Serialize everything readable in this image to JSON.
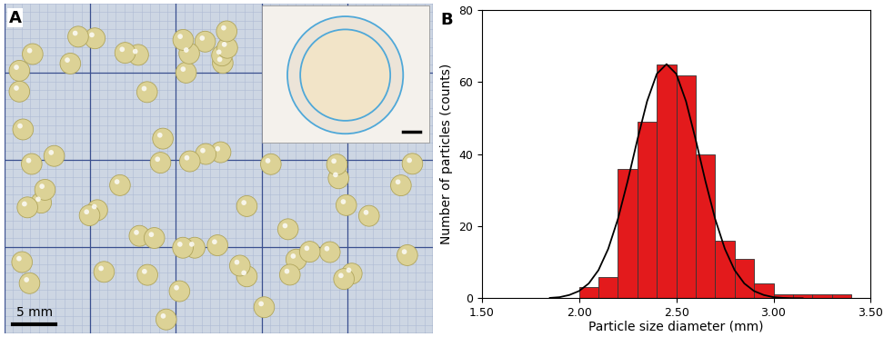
{
  "panel_labels": [
    "A",
    "B"
  ],
  "image_panel": {
    "scale_bar": "5 mm"
  },
  "chart_data": {
    "type": "histogram",
    "x_label": "Particle size diameter (mm)",
    "y_label": "Number of particles (counts)",
    "bins": [
      2.0,
      2.1,
      2.2,
      2.3,
      2.4,
      2.5,
      2.6,
      2.7,
      2.8,
      2.9,
      3.0,
      3.1,
      3.2,
      3.3,
      3.4
    ],
    "counts": [
      3,
      6,
      36,
      49,
      65,
      62,
      40,
      16,
      11,
      4,
      1,
      1,
      1,
      1
    ],
    "color": "#e31a1c",
    "fit_curve": {
      "type": "line",
      "color": "#000000",
      "x": [
        1.85,
        1.9,
        1.95,
        2.0,
        2.05,
        2.1,
        2.15,
        2.2,
        2.25,
        2.3,
        2.35,
        2.4,
        2.45,
        2.5,
        2.55,
        2.6,
        2.65,
        2.7,
        2.75,
        2.8,
        2.85,
        2.9,
        2.95,
        3.0,
        3.05,
        3.1,
        3.15
      ],
      "values": [
        0.1,
        0.3,
        0.9,
        2.0,
        4.1,
        7.8,
        13.7,
        22.0,
        32.5,
        44.0,
        54.7,
        62.3,
        65,
        62.3,
        54.7,
        44.0,
        32.5,
        22.0,
        13.7,
        7.8,
        4.1,
        2.0,
        0.9,
        0.3,
        0.1,
        0.0,
        0.0
      ]
    },
    "xlim": [
      1.5,
      3.5
    ],
    "xticks": [
      {
        "value": 1.5,
        "label": "1.50"
      },
      {
        "value": 2.0,
        "label": "2.00"
      },
      {
        "value": 2.5,
        "label": "2.50"
      },
      {
        "value": 3.0,
        "label": "3.00"
      },
      {
        "value": 3.5,
        "label": "3.50"
      }
    ],
    "ylim": [
      0,
      80
    ],
    "yticks": [
      0,
      20,
      40,
      60,
      80
    ],
    "grid": false
  }
}
